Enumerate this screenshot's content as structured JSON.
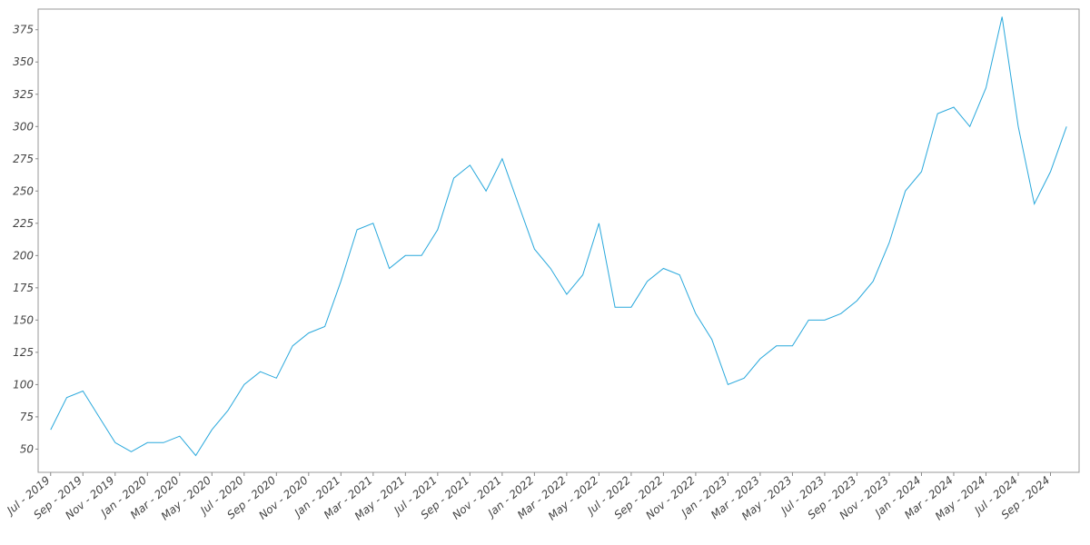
{
  "chart_data": {
    "type": "line",
    "x": [
      "2019-07",
      "2019-08",
      "2019-09",
      "2019-10",
      "2019-11",
      "2019-12",
      "2020-01",
      "2020-02",
      "2020-03",
      "2020-04",
      "2020-05",
      "2020-06",
      "2020-07",
      "2020-08",
      "2020-09",
      "2020-10",
      "2020-11",
      "2020-12",
      "2021-01",
      "2021-02",
      "2021-03",
      "2021-04",
      "2021-05",
      "2021-06",
      "2021-07",
      "2021-08",
      "2021-09",
      "2021-10",
      "2021-11",
      "2021-12",
      "2022-01",
      "2022-02",
      "2022-03",
      "2022-04",
      "2022-05",
      "2022-06",
      "2022-07",
      "2022-08",
      "2022-09",
      "2022-10",
      "2022-11",
      "2022-12",
      "2023-01",
      "2023-02",
      "2023-03",
      "2023-04",
      "2023-05",
      "2023-06",
      "2023-07",
      "2023-08",
      "2023-09",
      "2023-10",
      "2023-11",
      "2023-12",
      "2024-01",
      "2024-02",
      "2024-03",
      "2024-04",
      "2024-05",
      "2024-06",
      "2024-07",
      "2024-08",
      "2024-09",
      "2024-10"
    ],
    "series": [
      {
        "color": "#29a8dc",
        "values": [
          65,
          90,
          95,
          75,
          55,
          48,
          55,
          55,
          60,
          45,
          65,
          80,
          100,
          110,
          105,
          130,
          140,
          145,
          180,
          220,
          225,
          190,
          200,
          200,
          220,
          260,
          270,
          250,
          275,
          240,
          205,
          190,
          170,
          185,
          225,
          160,
          160,
          180,
          190,
          185,
          155,
          135,
          100,
          105,
          120,
          130,
          130,
          150,
          150,
          155,
          165,
          180,
          210,
          250,
          265,
          310,
          315,
          300,
          330,
          385,
          300,
          240,
          265,
          300
        ]
      }
    ],
    "xlim": [
      "2019-06",
      "2024-11"
    ],
    "ylim": [
      32,
      391
    ],
    "yticks": [
      50,
      75,
      100,
      125,
      150,
      175,
      200,
      225,
      250,
      275,
      300,
      325,
      350,
      375
    ],
    "xticks": [
      {
        "value": "2019-07",
        "label": "Jul - 2019"
      },
      {
        "value": "2019-09",
        "label": "Sep - 2019"
      },
      {
        "value": "2019-11",
        "label": "Nov - 2019"
      },
      {
        "value": "2020-01",
        "label": "Jan - 2020"
      },
      {
        "value": "2020-03",
        "label": "Mar - 2020"
      },
      {
        "value": "2020-05",
        "label": "May - 2020"
      },
      {
        "value": "2020-07",
        "label": "Jul - 2020"
      },
      {
        "value": "2020-09",
        "label": "Sep - 2020"
      },
      {
        "value": "2020-11",
        "label": "Nov - 2020"
      },
      {
        "value": "2021-01",
        "label": "Jan - 2021"
      },
      {
        "value": "2021-03",
        "label": "Mar - 2021"
      },
      {
        "value": "2021-05",
        "label": "May - 2021"
      },
      {
        "value": "2021-07",
        "label": "Jul - 2021"
      },
      {
        "value": "2021-09",
        "label": "Sep - 2021"
      },
      {
        "value": "2021-11",
        "label": "Nov - 2021"
      },
      {
        "value": "2022-01",
        "label": "Jan - 2022"
      },
      {
        "value": "2022-03",
        "label": "Mar - 2022"
      },
      {
        "value": "2022-05",
        "label": "May - 2022"
      },
      {
        "value": "2022-07",
        "label": "Jul - 2022"
      },
      {
        "value": "2022-09",
        "label": "Sep - 2022"
      },
      {
        "value": "2022-11",
        "label": "Nov - 2022"
      },
      {
        "value": "2023-01",
        "label": "Jan - 2023"
      },
      {
        "value": "2023-03",
        "label": "Mar - 2023"
      },
      {
        "value": "2023-05",
        "label": "May - 2023"
      },
      {
        "value": "2023-07",
        "label": "Jul - 2023"
      },
      {
        "value": "2023-09",
        "label": "Sep - 2023"
      },
      {
        "value": "2023-11",
        "label": "Nov - 2023"
      },
      {
        "value": "2024-01",
        "label": "Jan - 2024"
      },
      {
        "value": "2024-03",
        "label": "Mar - 2024"
      },
      {
        "value": "2024-05",
        "label": "May - 2024"
      },
      {
        "value": "2024-07",
        "label": "Jul - 2024"
      },
      {
        "value": "2024-09",
        "label": "Sep - 2024"
      }
    ]
  }
}
